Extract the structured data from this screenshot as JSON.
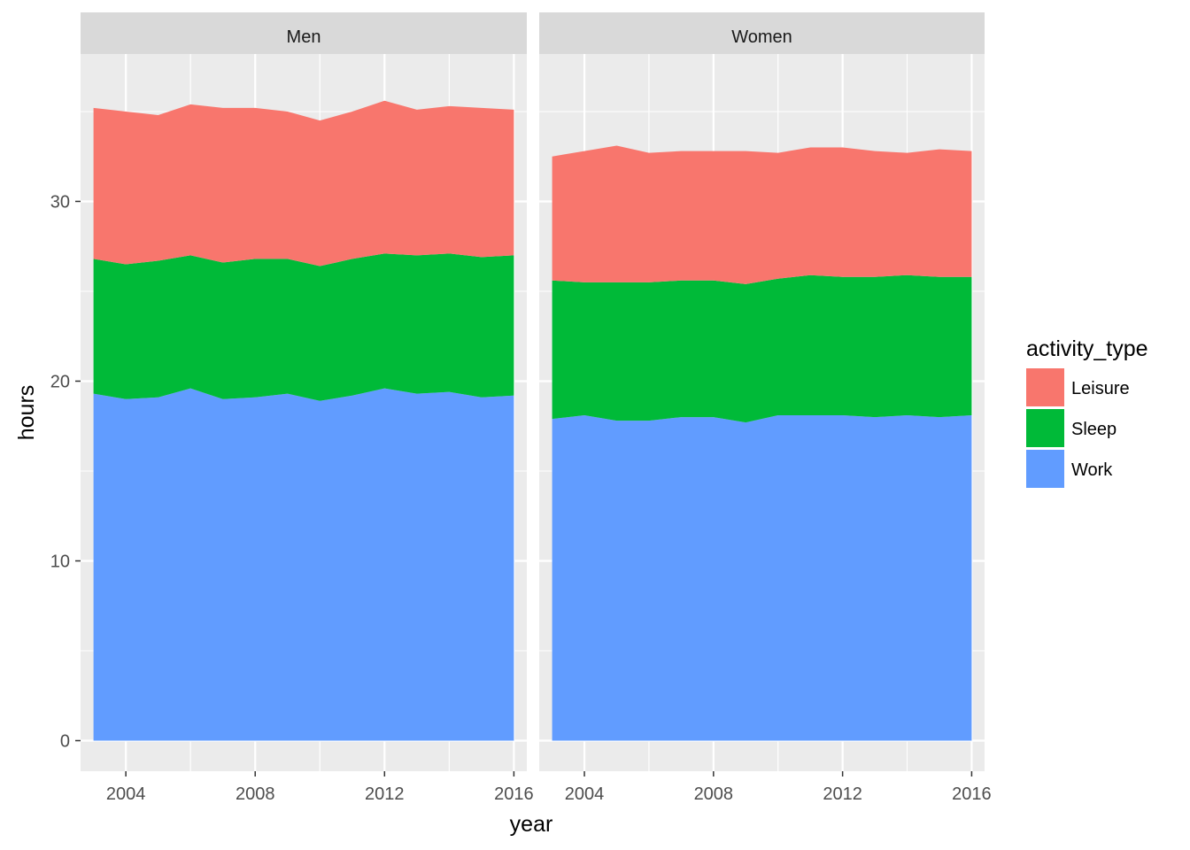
{
  "chart_data": {
    "type": "area",
    "stacked": true,
    "xlabel": "year",
    "ylabel": "hours",
    "xlim": [
      2002.6,
      2016.4
    ],
    "ylim": [
      -1.7,
      38.2
    ],
    "x_ticks": [
      2004,
      2008,
      2012,
      2016
    ],
    "x_tick_labels": [
      "2004",
      "2008",
      "2012",
      "2016"
    ],
    "y_ticks": [
      0,
      10,
      20,
      30
    ],
    "y_tick_labels": [
      "0",
      "10",
      "20",
      "30"
    ],
    "grid": true,
    "legend": {
      "title": "activity_type",
      "position": "right",
      "entries": [
        {
          "name": "Leisure",
          "color": "#F8766D"
        },
        {
          "name": "Sleep",
          "color": "#00BA38"
        },
        {
          "name": "Work",
          "color": "#619CFF"
        }
      ]
    },
    "x": [
      2003,
      2004,
      2005,
      2006,
      2007,
      2008,
      2009,
      2010,
      2011,
      2012,
      2013,
      2014,
      2015,
      2016
    ],
    "panels": [
      {
        "label": "Men",
        "series": [
          {
            "name": "Work",
            "color": "#619CFF",
            "values": [
              19.3,
              19.0,
              19.1,
              19.6,
              19.0,
              19.1,
              19.3,
              18.9,
              19.2,
              19.6,
              19.3,
              19.4,
              19.1,
              19.2
            ]
          },
          {
            "name": "Sleep",
            "color": "#00BA38",
            "values": [
              7.5,
              7.5,
              7.6,
              7.4,
              7.6,
              7.7,
              7.5,
              7.5,
              7.6,
              7.5,
              7.7,
              7.7,
              7.8,
              7.8
            ]
          },
          {
            "name": "Leisure",
            "color": "#F8766D",
            "values": [
              8.4,
              8.5,
              8.1,
              8.4,
              8.6,
              8.4,
              8.2,
              8.1,
              8.2,
              8.5,
              8.1,
              8.2,
              8.3,
              8.1
            ]
          }
        ]
      },
      {
        "label": "Women",
        "series": [
          {
            "name": "Work",
            "color": "#619CFF",
            "values": [
              17.9,
              18.1,
              17.8,
              17.8,
              18.0,
              18.0,
              17.7,
              18.1,
              18.1,
              18.1,
              18.0,
              18.1,
              18.0,
              18.1
            ]
          },
          {
            "name": "Sleep",
            "color": "#00BA38",
            "values": [
              7.7,
              7.4,
              7.7,
              7.7,
              7.6,
              7.6,
              7.7,
              7.6,
              7.8,
              7.7,
              7.8,
              7.8,
              7.8,
              7.7
            ]
          },
          {
            "name": "Leisure",
            "color": "#F8766D",
            "values": [
              6.9,
              7.3,
              7.6,
              7.2,
              7.2,
              7.2,
              7.4,
              7.0,
              7.1,
              7.2,
              7.0,
              6.8,
              7.1,
              7.0
            ]
          }
        ]
      }
    ]
  },
  "colors": {
    "panel_background": "#EBEBEB",
    "strip_background": "#D9D9D9",
    "grid_major": "#FFFFFF",
    "tick_mark": "#333333"
  }
}
